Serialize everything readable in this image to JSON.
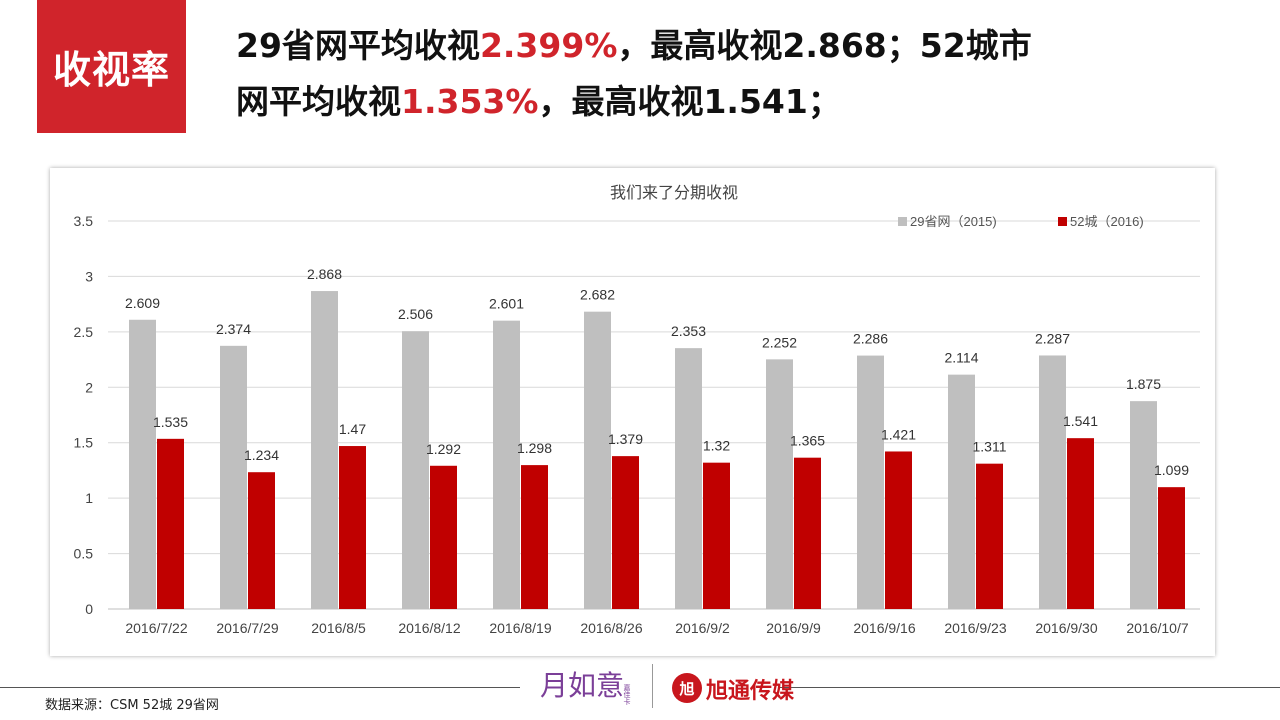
{
  "header": {
    "badge": "收视率",
    "line1_a": "29省网平均收视",
    "line1_hl": "2.399%",
    "line1_b": "，最高收视2.868；52城市",
    "line2_a": "网平均收视",
    "line2_hl": "1.353%",
    "line2_b": "，最高收视1.541；"
  },
  "footer": {
    "source": "数据来源：CSM  52城  29省网",
    "logo_left": "月如意",
    "logo_left_sub": "嘉佳卡",
    "logo_right_mark": "旭",
    "logo_right": "旭通传媒"
  },
  "colors": {
    "accent": "#d0242b",
    "series_gray": "#bfbfbf",
    "series_red": "#c00000"
  },
  "chart_data": {
    "type": "bar",
    "title": "我们来了分期收视",
    "xlabel": "",
    "ylabel": "",
    "ylim": [
      0,
      3.5
    ],
    "yticks": [
      "0",
      "0.5",
      "1",
      "1.5",
      "2",
      "2.5",
      "3",
      "3.5"
    ],
    "grid": true,
    "legend_position": "top-right",
    "categories": [
      "2016/7/22",
      "2016/7/29",
      "2016/8/5",
      "2016/8/12",
      "2016/8/19",
      "2016/8/26",
      "2016/9/2",
      "2016/9/9",
      "2016/9/16",
      "2016/9/23",
      "2016/9/30",
      "2016/10/7"
    ],
    "series": [
      {
        "name": "29省网（2015)",
        "color": "#bfbfbf",
        "values": [
          2.609,
          2.374,
          2.868,
          2.506,
          2.601,
          2.682,
          2.353,
          2.252,
          2.286,
          2.114,
          2.287,
          1.875
        ],
        "labels": [
          "2.609",
          "2.374",
          "2.868",
          "2.506",
          "2.601",
          "2.682",
          "2.353",
          "2.252",
          "2.286",
          "2.114",
          "2.287",
          "1.875"
        ]
      },
      {
        "name": "52城（2016)",
        "color": "#c00000",
        "values": [
          1.535,
          1.234,
          1.47,
          1.292,
          1.298,
          1.379,
          1.32,
          1.365,
          1.421,
          1.311,
          1.541,
          1.099
        ],
        "labels": [
          "1.535",
          "1.234",
          "1.47",
          "1.292",
          "1.298",
          "1.379",
          "1.32",
          "1.365",
          "1.421",
          "1.311",
          "1.541",
          "1.099"
        ]
      }
    ]
  }
}
